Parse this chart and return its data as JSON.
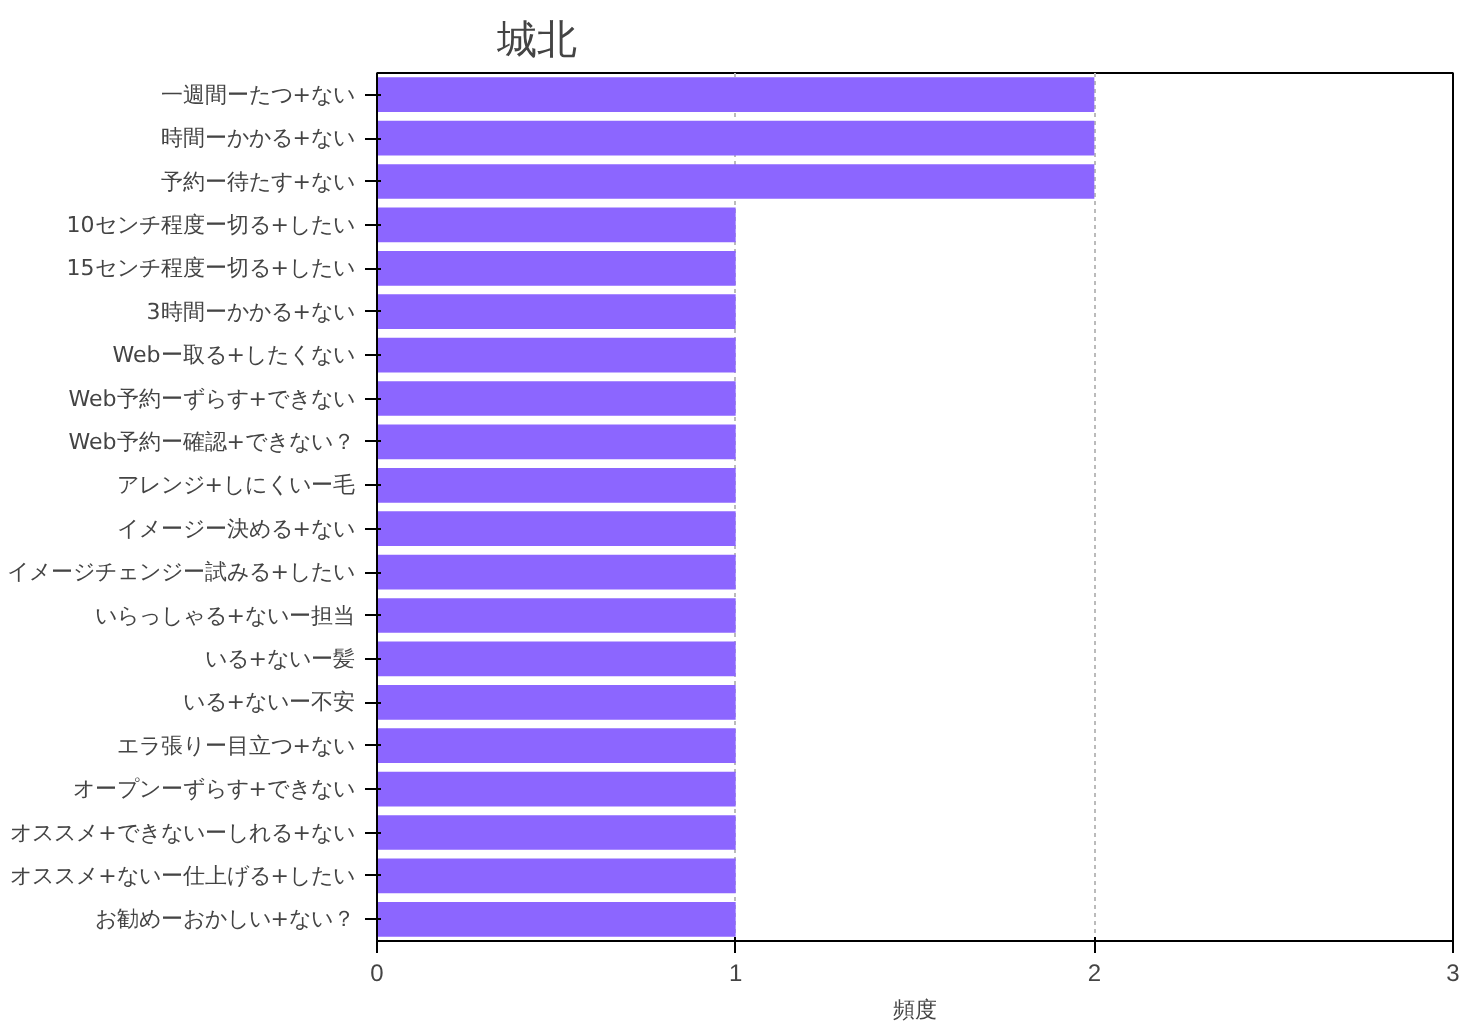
{
  "chart_data": {
    "type": "bar",
    "orientation": "horizontal",
    "title": "城北",
    "xlabel": "頻度",
    "categories": [
      "一週間ーたつ+ない",
      "時間ーかかる+ない",
      "予約ー待たす+ない",
      "10センチ程度ー切る+したい",
      "15センチ程度ー切る+したい",
      "3時間ーかかる+ない",
      "Webー取る+したくない",
      "Web予約ーずらす+できない",
      "Web予約ー確認+できない？",
      "アレンジ+しにくいー毛",
      "イメージー決める+ない",
      "イメージチェンジー試みる+したい",
      "いらっしゃる+ないー担当",
      "いる+ないー髪",
      "いる+ないー不安",
      "エラ張りー目立つ+ない",
      "オープンーずらす+できない",
      "オススメ+できないーしれる+ない",
      "オススメ+ないー仕上げる+したい",
      "お勧めーおかしい+ない？"
    ],
    "values": [
      2,
      2,
      2,
      1,
      1,
      1,
      1,
      1,
      1,
      1,
      1,
      1,
      1,
      1,
      1,
      1,
      1,
      1,
      1,
      1
    ],
    "color": "#8c66ff",
    "xlim": [
      0,
      3
    ],
    "xticks": [
      0,
      1,
      2,
      3
    ],
    "grid": "x"
  }
}
